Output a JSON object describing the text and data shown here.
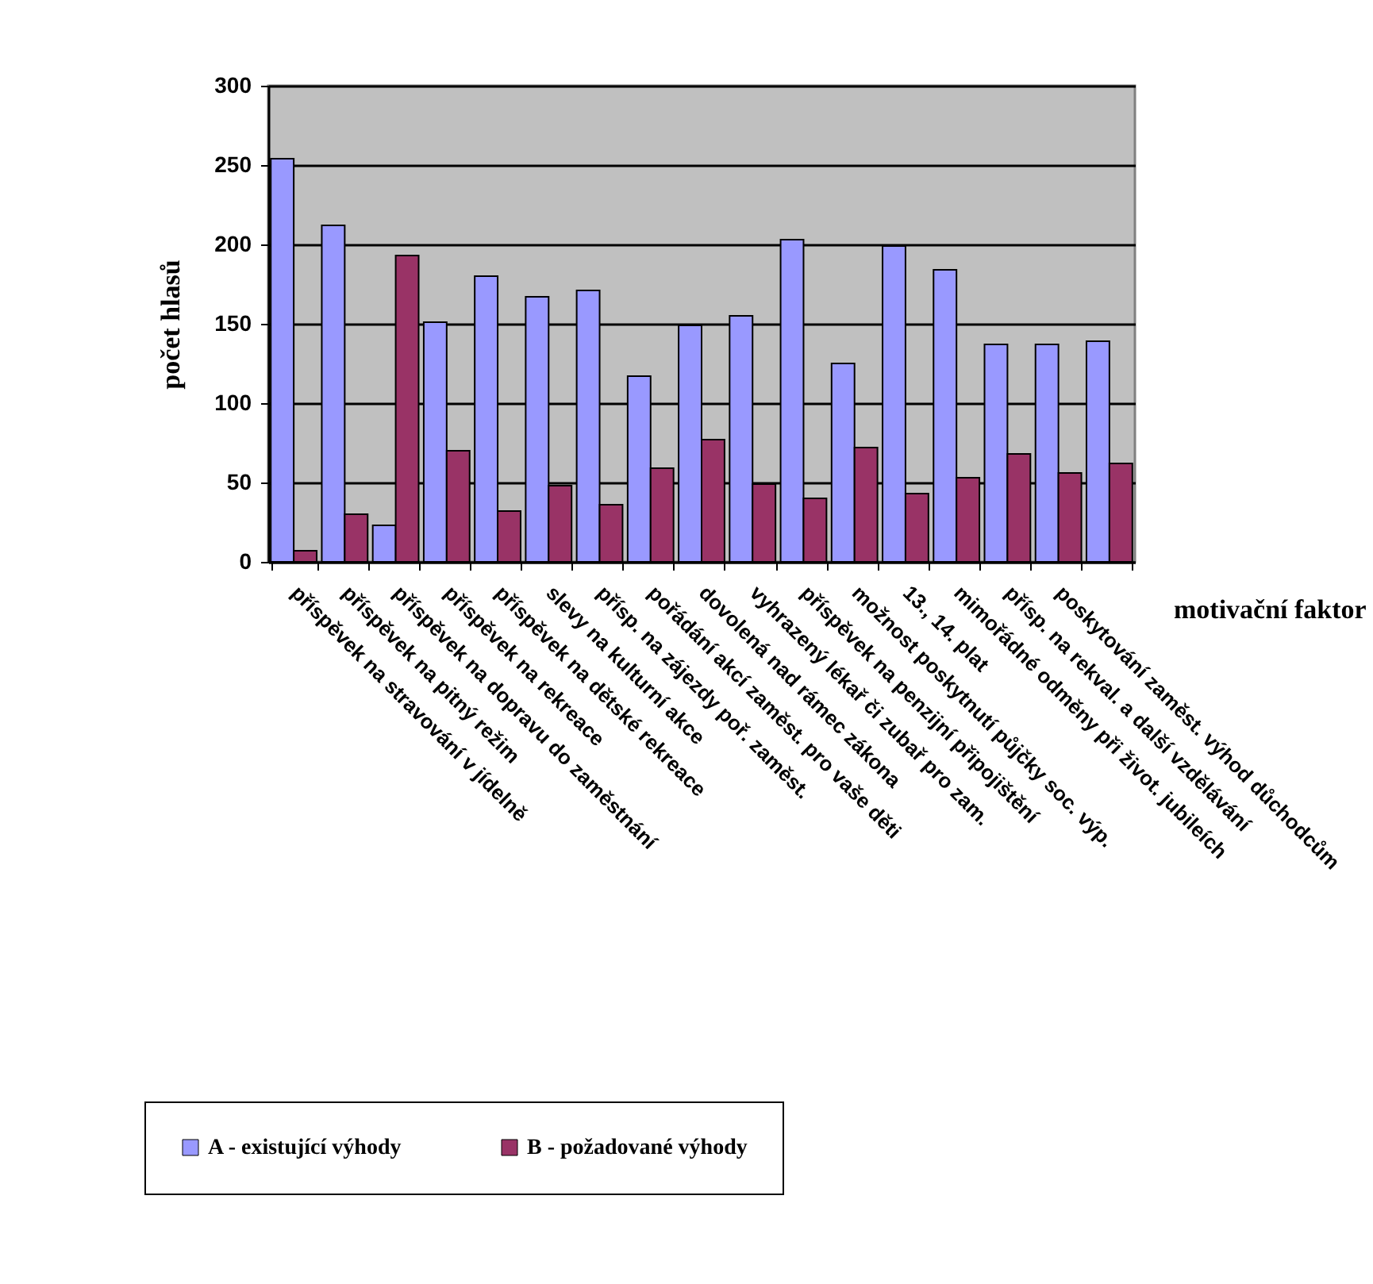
{
  "chart_data": {
    "type": "bar",
    "xlabel": "motivační faktor",
    "ylabel": "počet hlasů",
    "categories": [
      "příspěvek na stravování v jídelně",
      "příspěvek na pitný režim",
      "příspěvek na dopravu do zaměstnání",
      "příspěvek na rekreace",
      "příspěvek na dětské rekreace",
      "slevy na kulturní akce",
      "přísp. na zájezdy poř. zaměst.",
      "pořádání akcí zaměst. pro vaše děti",
      "dovolená nad rámec zákona",
      "vyhrazený lékař či zubař pro zam.",
      "příspěvek na penzijní připojištění",
      "možnost poskytnutí půjčky soc. výp.",
      "13., 14. plat",
      "mimořádné odměny při život. jubileích",
      "přísp. na rekval. a další vzdělávání",
      "poskytování zaměst. výhod důchodcům",
      null
    ],
    "series": [
      {
        "name": "A - existující výhody",
        "color": "#9999ff",
        "values": [
          254,
          212,
          23,
          151,
          180,
          167,
          171,
          117,
          149,
          155,
          203,
          125,
          199,
          184,
          137,
          137,
          139
        ]
      },
      {
        "name": "B - požadované výhody",
        "color": "#993366",
        "values": [
          7,
          30,
          193,
          70,
          32,
          48,
          36,
          59,
          77,
          49,
          40,
          72,
          43,
          53,
          68,
          56,
          62
        ]
      }
    ],
    "ylim": [
      0,
      300
    ],
    "yticks": [
      0,
      50,
      100,
      150,
      200,
      250,
      300
    ],
    "grid": "y",
    "legend": "bottom"
  }
}
